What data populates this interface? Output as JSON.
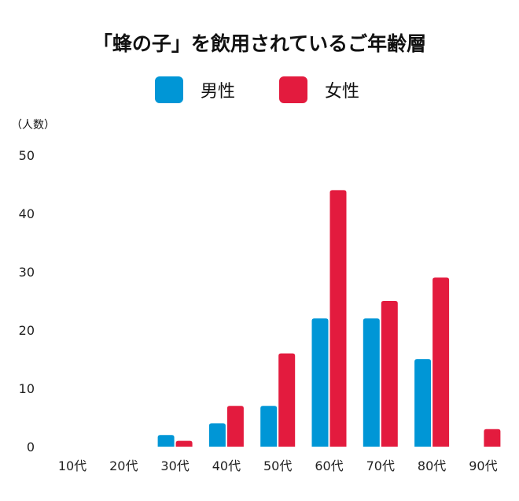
{
  "chart_data": {
    "type": "bar",
    "title": "「蜂の子」を飲用されているご年齢層",
    "ylabel": "（人数）",
    "xlabel": "",
    "categories": [
      "10代",
      "20代",
      "30代",
      "40代",
      "50代",
      "60代",
      "70代",
      "80代",
      "90代"
    ],
    "series": [
      {
        "name": "男性",
        "color": "#0096d6",
        "values": [
          0,
          0,
          2,
          4,
          7,
          22,
          22,
          15,
          0
        ]
      },
      {
        "name": "女性",
        "color": "#e31b3e",
        "values": [
          0,
          0,
          1,
          7,
          16,
          44,
          25,
          29,
          3
        ]
      }
    ],
    "ylim": [
      0,
      50
    ],
    "yticks": [
      0,
      10,
      20,
      30,
      40,
      50
    ],
    "grid": false,
    "legend": "top-center"
  }
}
